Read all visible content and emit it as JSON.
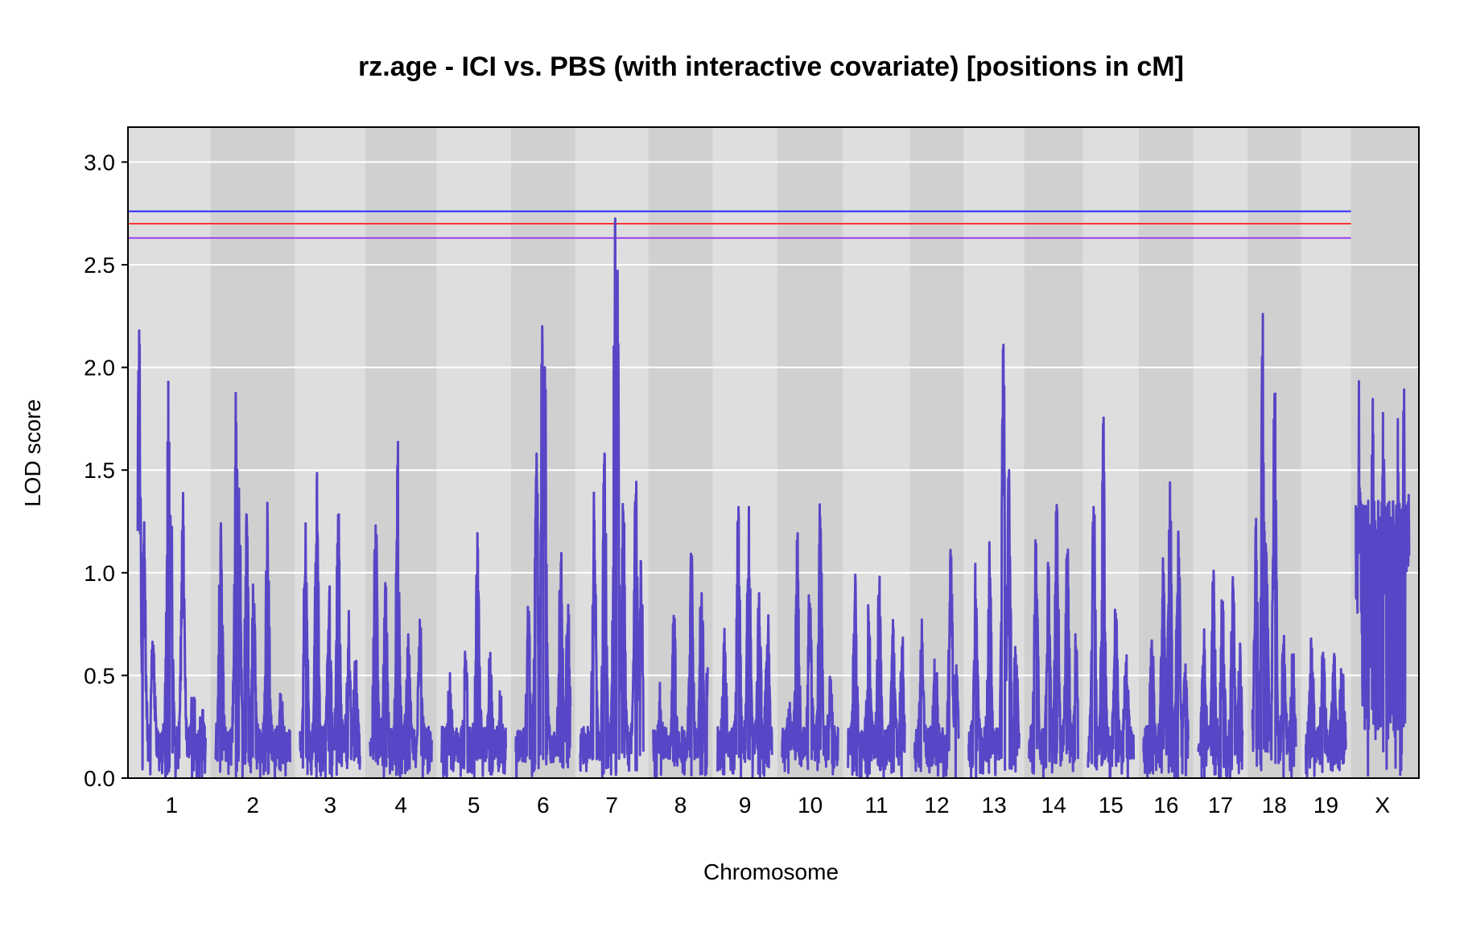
{
  "chart_data": {
    "type": "line",
    "title": "rz.age - ICI vs. PBS (with interactive covariate) [positions in cM]",
    "xlabel": "Chromosome",
    "ylabel": "LOD score",
    "ylim": [
      0,
      3.17
    ],
    "yticks": [
      0.0,
      0.5,
      1.0,
      1.5,
      2.0,
      2.5,
      3.0
    ],
    "ytick_labels": [
      "0.0",
      "0.5",
      "1.0",
      "1.5",
      "2.0",
      "2.5",
      "3.0"
    ],
    "grid": true,
    "line_color": "#5746c6",
    "band_colors": [
      "#dedede",
      "#d0d0d0"
    ],
    "thresholds": [
      {
        "value": 2.76,
        "color": "#2a2aff"
      },
      {
        "value": 2.7,
        "color": "#ff3333"
      },
      {
        "value": 2.63,
        "color": "#9a3ff0"
      }
    ],
    "chromosomes": [
      {
        "label": "1",
        "length": 98,
        "peaks": [
          [
            2,
            2.18
          ],
          [
            9,
            1.15
          ],
          [
            22,
            0.6
          ],
          [
            44,
            1.93
          ],
          [
            48,
            1.2
          ],
          [
            65,
            1.22
          ],
          [
            80,
            0.3
          ],
          [
            92,
            0.15
          ]
        ]
      },
      {
        "label": "2",
        "length": 108,
        "peaks": [
          [
            8,
            1.24
          ],
          [
            30,
            1.73
          ],
          [
            34,
            1.41
          ],
          [
            45,
            1.27
          ],
          [
            55,
            0.85
          ],
          [
            75,
            1.34
          ],
          [
            95,
            0.27
          ]
        ]
      },
      {
        "label": "3",
        "length": 87,
        "peaks": [
          [
            8,
            1.24
          ],
          [
            24,
            1.44
          ],
          [
            42,
            0.85
          ],
          [
            55,
            1.28
          ],
          [
            70,
            0.63
          ],
          [
            80,
            0.4
          ]
        ]
      },
      {
        "label": "4",
        "length": 89,
        "peaks": [
          [
            8,
            1.23
          ],
          [
            22,
            0.95
          ],
          [
            40,
            1.49
          ],
          [
            55,
            0.7
          ],
          [
            72,
            0.65
          ]
        ]
      },
      {
        "label": "5",
        "length": 93,
        "peaks": [
          [
            12,
            0.3
          ],
          [
            35,
            0.55
          ],
          [
            52,
            1.04
          ],
          [
            70,
            0.5
          ],
          [
            85,
            0.2
          ]
        ]
      },
      {
        "label": "6",
        "length": 79,
        "peaks": [
          [
            18,
            0.76
          ],
          [
            30,
            1.58
          ],
          [
            38,
            2.2
          ],
          [
            42,
            2.0
          ],
          [
            65,
            1.05
          ],
          [
            75,
            0.75
          ]
        ]
      },
      {
        "label": "7",
        "length": 91,
        "peaks": [
          [
            20,
            1.2
          ],
          [
            35,
            1.58
          ],
          [
            50,
            2.67
          ],
          [
            54,
            2.47
          ],
          [
            62,
            1.3
          ],
          [
            80,
            1.38
          ],
          [
            88,
            0.9
          ]
        ]
      },
      {
        "label": "8",
        "length": 79,
        "peaks": [
          [
            10,
            0.25
          ],
          [
            30,
            0.7
          ],
          [
            55,
            1.01
          ],
          [
            70,
            0.9
          ],
          [
            78,
            0.4
          ]
        ]
      },
      {
        "label": "9",
        "length": 79,
        "peaks": [
          [
            10,
            0.6
          ],
          [
            30,
            1.32
          ],
          [
            45,
            1.32
          ],
          [
            60,
            0.9
          ],
          [
            72,
            0.65
          ]
        ]
      },
      {
        "label": "10",
        "length": 81,
        "peaks": [
          [
            10,
            0.2
          ],
          [
            22,
            1.01
          ],
          [
            40,
            0.85
          ],
          [
            55,
            1.27
          ],
          [
            70,
            0.35
          ]
        ]
      },
      {
        "label": "11",
        "length": 82,
        "peaks": [
          [
            10,
            0.9
          ],
          [
            30,
            0.76
          ],
          [
            45,
            0.89
          ],
          [
            65,
            0.6
          ],
          [
            78,
            0.5
          ]
        ]
      },
      {
        "label": "12",
        "length": 64,
        "peaks": [
          [
            10,
            0.6
          ],
          [
            30,
            0.5
          ],
          [
            52,
            1.05
          ],
          [
            60,
            0.4
          ]
        ]
      },
      {
        "label": "13",
        "length": 73,
        "peaks": [
          [
            10,
            0.87
          ],
          [
            30,
            1.0
          ],
          [
            50,
            2.11
          ],
          [
            58,
            1.5
          ],
          [
            68,
            0.6
          ]
        ]
      },
      {
        "label": "14",
        "length": 71,
        "peaks": [
          [
            10,
            1.14
          ],
          [
            28,
            0.9
          ],
          [
            40,
            1.33
          ],
          [
            55,
            1.09
          ],
          [
            68,
            0.6
          ]
        ]
      },
      {
        "label": "15",
        "length": 66,
        "peaks": [
          [
            8,
            1.32
          ],
          [
            22,
            1.64
          ],
          [
            40,
            0.8
          ],
          [
            55,
            0.5
          ]
        ]
      },
      {
        "label": "16",
        "length": 65,
        "peaks": [
          [
            12,
            0.67
          ],
          [
            28,
            1.07
          ],
          [
            38,
            1.44
          ],
          [
            50,
            1.2
          ],
          [
            60,
            0.4
          ]
        ]
      },
      {
        "label": "17",
        "length": 64,
        "peaks": [
          [
            8,
            0.6
          ],
          [
            22,
            1.01
          ],
          [
            35,
            0.8
          ],
          [
            50,
            0.86
          ],
          [
            60,
            0.5
          ]
        ]
      },
      {
        "label": "18",
        "length": 63,
        "peaks": [
          [
            5,
            1.15
          ],
          [
            15,
            2.26
          ],
          [
            20,
            1.1
          ],
          [
            32,
            1.87
          ],
          [
            45,
            0.6
          ],
          [
            58,
            0.45
          ]
        ]
      },
      {
        "label": "19",
        "length": 58,
        "peaks": [
          [
            8,
            0.57
          ],
          [
            25,
            0.61
          ],
          [
            40,
            0.55
          ],
          [
            52,
            0.42
          ]
        ]
      },
      {
        "label": "X",
        "length": 77,
        "peaks": [
          [
            5,
            1.41
          ],
          [
            25,
            1.3
          ],
          [
            40,
            1.49
          ],
          [
            60,
            1.28
          ],
          [
            70,
            1.61
          ],
          [
            75,
            1.2
          ]
        ]
      }
    ]
  }
}
